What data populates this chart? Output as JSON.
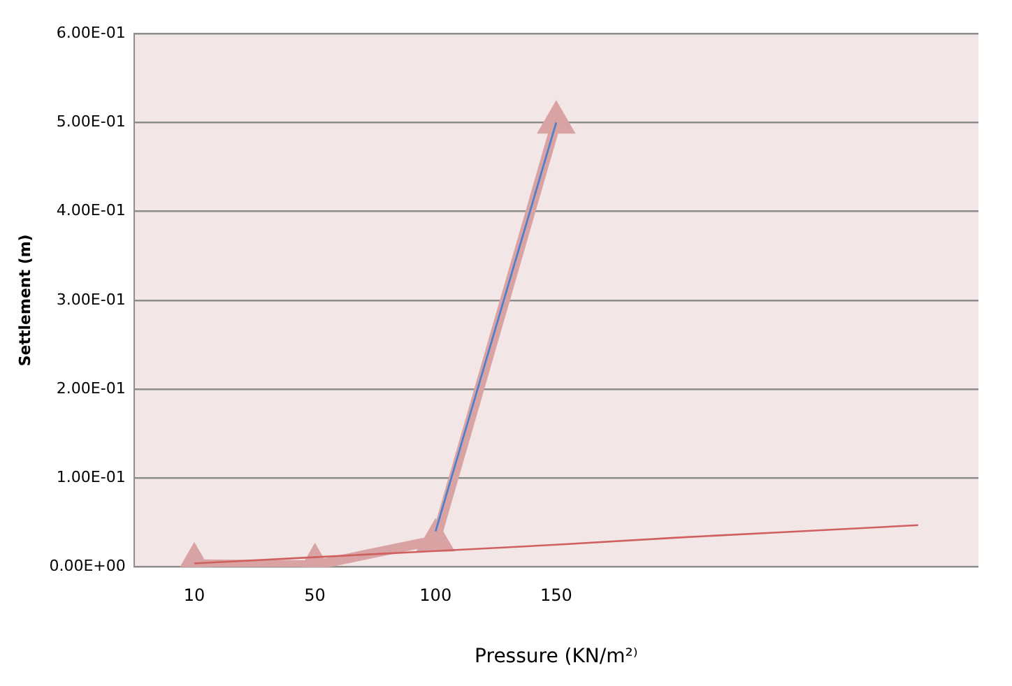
{
  "chart_data": {
    "type": "line",
    "xlabel": "Pressure (KN/m²⁾",
    "ylabel": "Settlement (m)",
    "categories": [
      "10",
      "50",
      "100",
      "150",
      null,
      null,
      null
    ],
    "series": [
      {
        "color": "#d9a3a3",
        "values": [
          0.003,
          0.002,
          0.03,
          0.5,
          null,
          null,
          null
        ],
        "marker": "triangle"
      },
      {
        "color": "#d06060",
        "values": [
          0.004,
          0.011,
          0.018,
          0.025,
          0.033,
          0.04,
          0.047
        ],
        "marker": "none"
      },
      {
        "color": "#4a7fd0",
        "values": [
          null,
          null,
          0.04,
          0.5,
          null,
          null,
          null
        ],
        "marker": "none"
      }
    ],
    "ylim": [
      0,
      0.6
    ],
    "yticks": [
      {
        "value": 0,
        "label": "0.00E+00"
      },
      {
        "value": 0.1,
        "label": "1.00E-01"
      },
      {
        "value": 0.2,
        "label": "2.00E-01"
      },
      {
        "value": 0.3,
        "label": "3.00E-01"
      },
      {
        "value": 0.4,
        "label": "4.00E-01"
      },
      {
        "value": 0.5,
        "label": "5.00E-01"
      },
      {
        "value": 0.6,
        "label": "6.00E-01"
      }
    ],
    "grid": "y",
    "legend": false
  }
}
